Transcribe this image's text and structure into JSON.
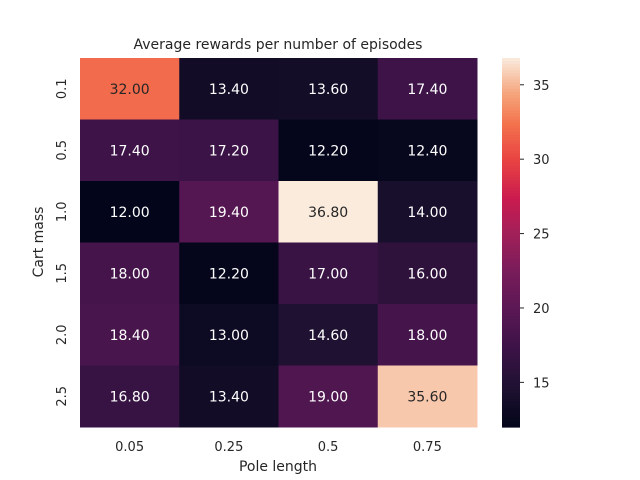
{
  "chart_data": {
    "type": "heatmap",
    "title": "Average rewards per number of episodes",
    "xlabel": "Pole length",
    "ylabel": "Cart mass",
    "x_categories": [
      "0.05",
      "0.25",
      "0.5",
      "0.75"
    ],
    "y_categories": [
      "0.1",
      "0.5",
      "1.0",
      "1.5",
      "2.0",
      "2.5"
    ],
    "values": [
      [
        32.0,
        13.4,
        13.6,
        17.4
      ],
      [
        17.4,
        17.2,
        12.2,
        12.4
      ],
      [
        12.0,
        19.4,
        36.8,
        14.0
      ],
      [
        18.0,
        12.2,
        17.0,
        16.0
      ],
      [
        18.4,
        13.0,
        14.6,
        18.0
      ],
      [
        16.8,
        13.4,
        19.0,
        35.6
      ]
    ],
    "cell_labels": [
      [
        "32.00",
        "13.40",
        "13.60",
        "17.40"
      ],
      [
        "17.40",
        "17.20",
        "12.20",
        "12.40"
      ],
      [
        "12.00",
        "19.40",
        "36.80",
        "14.00"
      ],
      [
        "18.00",
        "12.20",
        "17.00",
        "16.00"
      ],
      [
        "18.40",
        "13.00",
        "14.60",
        "18.00"
      ],
      [
        "16.80",
        "13.40",
        "19.00",
        "35.60"
      ]
    ],
    "colorbar": {
      "range": [
        12.0,
        36.8
      ],
      "ticks": [
        15,
        20,
        25,
        30,
        35
      ],
      "colormap": "rocket"
    },
    "grid": false
  }
}
